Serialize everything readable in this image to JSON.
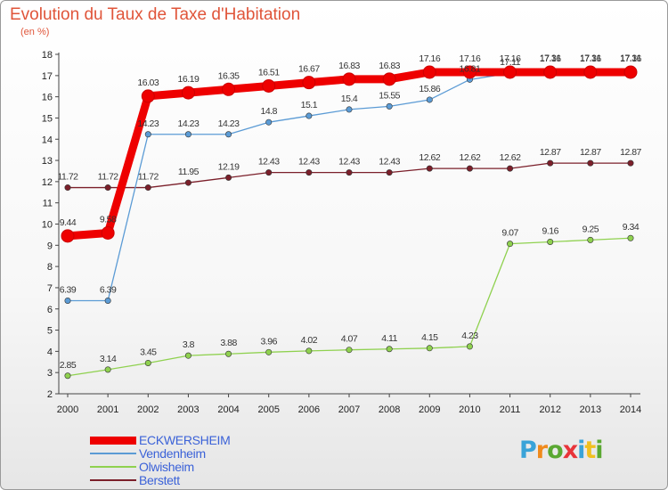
{
  "title": "Evolution du Taux de Taxe d'Habitation",
  "subtitle": "(en %)",
  "logo": {
    "text": "Proxiti",
    "colors": [
      "#3aa3d8",
      "#f08a1c",
      "#5aa832",
      "#e8343a",
      "#3aa3d8",
      "#f0c020",
      "#5aa832"
    ]
  },
  "chart_data": {
    "type": "line",
    "x": [
      2000,
      2001,
      2002,
      2003,
      2004,
      2005,
      2006,
      2007,
      2008,
      2009,
      2010,
      2011,
      2012,
      2013,
      2014
    ],
    "ylim": [
      2,
      18
    ],
    "yticks": [
      2,
      3,
      4,
      5,
      6,
      7,
      8,
      9,
      10,
      11,
      12,
      13,
      14,
      15,
      16,
      17,
      18
    ],
    "grid": false,
    "legend_position": "bottom-left",
    "series": [
      {
        "name": "ECKWERSHEIM",
        "color": "#ee0000",
        "values": [
          9.44,
          9.58,
          16.03,
          16.19,
          16.35,
          16.51,
          16.67,
          16.83,
          16.83,
          17.16,
          17.16,
          17.16,
          17.16,
          17.16,
          17.16
        ],
        "labels": [
          "9.44",
          "9.58",
          "16.03",
          "16.19",
          "16.35",
          "16.51",
          "16.67",
          "16.83",
          "16.83",
          "17.16",
          "17.16",
          "17.16",
          "17.16",
          "17.16",
          "17.16"
        ]
      },
      {
        "name": "Vendenheim",
        "color": "#5b9bd5",
        "values": [
          6.39,
          6.39,
          14.23,
          14.23,
          14.23,
          14.8,
          15.1,
          15.4,
          15.55,
          15.86,
          16.81,
          17.11,
          17.31,
          17.31,
          17.31
        ],
        "labels": [
          "6.39",
          "6.39",
          "14.23",
          "14.23",
          "14.23",
          "14.8",
          "15.1",
          "15.4",
          "15.55",
          "15.86",
          "16.81",
          "17.11",
          "17.31",
          "17.31",
          "17.31"
        ]
      },
      {
        "name": "Olwisheim",
        "color": "#8fd14f",
        "values": [
          2.85,
          3.14,
          3.45,
          3.8,
          3.88,
          3.96,
          4.02,
          4.07,
          4.11,
          4.15,
          4.23,
          9.07,
          9.16,
          9.25,
          9.34
        ],
        "labels": [
          "2.85",
          "3.14",
          "3.45",
          "3.8",
          "3.88",
          "3.96",
          "4.02",
          "4.07",
          "4.11",
          "4.15",
          "4.23",
          "9.07",
          "9.16",
          "9.25",
          "9.34"
        ]
      },
      {
        "name": "Berstett",
        "color": "#7b1f2a",
        "values": [
          11.72,
          11.72,
          11.72,
          11.95,
          12.19,
          12.43,
          12.43,
          12.43,
          12.43,
          12.62,
          12.62,
          12.62,
          12.87,
          12.87,
          12.87
        ],
        "labels": [
          "11.72",
          "11.72",
          "11.72",
          "11.95",
          "12.19",
          "12.43",
          "12.43",
          "12.43",
          "12.43",
          "12.62",
          "12.62",
          "12.62",
          "12.87",
          "12.87",
          "12.87"
        ]
      }
    ]
  }
}
